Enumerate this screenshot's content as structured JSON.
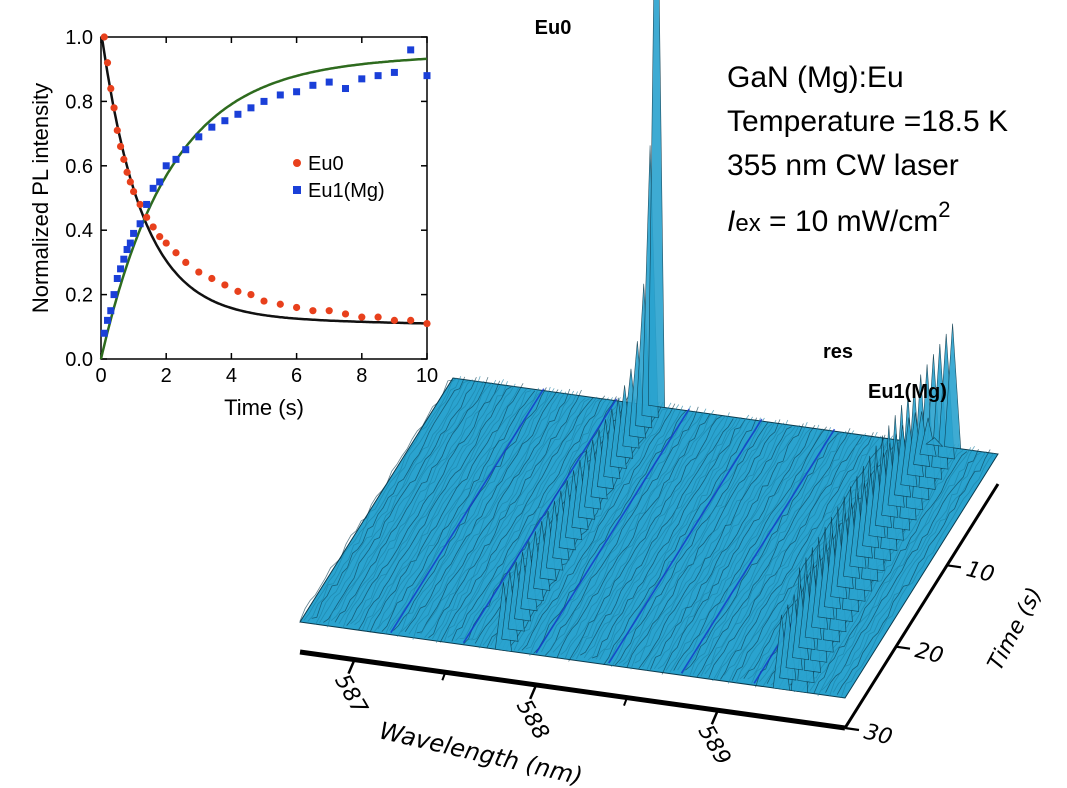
{
  "info": {
    "line1": "GaN (Mg):Eu",
    "line2": "Temperature =18.5 K",
    "line3": "355 nm CW laser",
    "line4_symbol": "I",
    "line4_subscript": "ex",
    "line4_value": " = 10 mW/cm",
    "line4_exponent": "2"
  },
  "colors": {
    "eu0_marker": "#e8401c",
    "eu1_marker": "#1a3fd8",
    "eu0_fit": "#111111",
    "eu1_fit": "#2e6b1e",
    "surface": "#2aa3cf",
    "surface_dark": "#0b3b4e",
    "peak_line": "#1234c8"
  },
  "chart_data": [
    {
      "type": "scatter",
      "xlabel": "Time (s)",
      "ylabel": "Normalized PL intensity",
      "xlim": [
        0,
        10
      ],
      "ylim": [
        0,
        1.0
      ],
      "xticks": [
        "0",
        "2",
        "4",
        "6",
        "8",
        "10"
      ],
      "yticks": [
        "0.0",
        "0.2",
        "0.4",
        "0.6",
        "0.8",
        "1.0"
      ],
      "legend": "center-right",
      "grid": false,
      "series": [
        {
          "name": "Eu0",
          "marker": "circle",
          "x": [
            0.1,
            0.2,
            0.3,
            0.4,
            0.5,
            0.6,
            0.7,
            0.8,
            0.9,
            1.0,
            1.2,
            1.4,
            1.6,
            1.8,
            2.0,
            2.3,
            2.6,
            3.0,
            3.4,
            3.8,
            4.2,
            4.6,
            5.0,
            5.5,
            6.0,
            6.5,
            7.0,
            7.5,
            8.0,
            8.5,
            9.0,
            9.5,
            10.0
          ],
          "y": [
            1.0,
            0.92,
            0.84,
            0.78,
            0.71,
            0.66,
            0.62,
            0.58,
            0.55,
            0.52,
            0.48,
            0.44,
            0.41,
            0.38,
            0.36,
            0.33,
            0.3,
            0.27,
            0.25,
            0.23,
            0.21,
            0.2,
            0.18,
            0.17,
            0.16,
            0.15,
            0.15,
            0.14,
            0.13,
            0.13,
            0.12,
            0.12,
            0.11
          ]
        },
        {
          "name": "Eu1(Mg)",
          "marker": "square",
          "x": [
            0.1,
            0.2,
            0.3,
            0.4,
            0.5,
            0.6,
            0.7,
            0.8,
            0.9,
            1.0,
            1.2,
            1.4,
            1.6,
            1.8,
            2.0,
            2.3,
            2.6,
            3.0,
            3.4,
            3.8,
            4.2,
            4.6,
            5.0,
            5.5,
            6.0,
            6.5,
            7.0,
            7.5,
            8.0,
            8.5,
            9.0,
            9.5,
            10.0
          ],
          "y": [
            0.08,
            0.12,
            0.15,
            0.2,
            0.25,
            0.28,
            0.31,
            0.34,
            0.36,
            0.39,
            0.42,
            0.48,
            0.53,
            0.55,
            0.6,
            0.62,
            0.65,
            0.69,
            0.72,
            0.74,
            0.76,
            0.78,
            0.8,
            0.82,
            0.83,
            0.85,
            0.86,
            0.84,
            0.87,
            0.88,
            0.89,
            0.96,
            0.88
          ]
        }
      ]
    },
    {
      "type": "area",
      "xlabel": "Wavelength (nm)",
      "ylabel": "Time (s)",
      "xticks": [
        "587",
        "588",
        "589"
      ],
      "yticks": [
        "10",
        "20",
        "30"
      ],
      "xlim": [
        586.7,
        589.7
      ],
      "ylim": [
        0,
        30
      ],
      "grid": false,
      "annotations": [
        {
          "text": "Eu0",
          "x": 587.82
        },
        {
          "text": "res",
          "x": 589.45
        },
        {
          "text": "Eu1(Mg)",
          "x": 589.6
        }
      ],
      "peaks": [
        {
          "wavelength": 587.82,
          "relative_height": 1.0
        },
        {
          "wavelength": 589.45,
          "relative_height": 0.2
        },
        {
          "wavelength": 589.35,
          "relative_height": 0.12
        }
      ]
    }
  ]
}
